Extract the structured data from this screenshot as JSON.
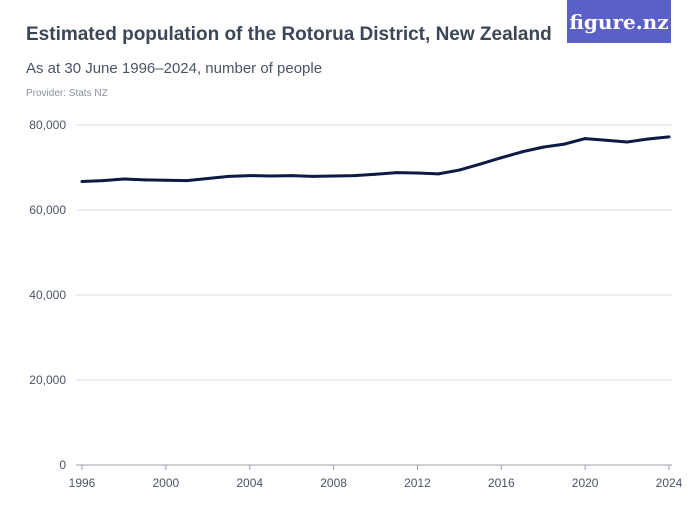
{
  "chart_data": {
    "type": "line",
    "title": "Estimated population of the Rotorua District, New Zealand",
    "subtitle": "As at 30 June 1996–2024, number of people",
    "provider": "Provider: Stats NZ",
    "xlabel": "",
    "ylabel": "",
    "xlim": [
      1996,
      2024
    ],
    "ylim": [
      0,
      80000
    ],
    "x_ticks": [
      "1996",
      "2000",
      "2004",
      "2008",
      "2012",
      "2016",
      "2020",
      "2024"
    ],
    "y_ticks": [
      "0",
      "20,000",
      "40,000",
      "60,000",
      "80,000"
    ],
    "grid": true,
    "line_color": "#0d1a45",
    "x": [
      1996,
      1997,
      1998,
      1999,
      2000,
      2001,
      2002,
      2003,
      2004,
      2005,
      2006,
      2007,
      2008,
      2009,
      2010,
      2011,
      2012,
      2013,
      2014,
      2015,
      2016,
      2017,
      2018,
      2019,
      2020,
      2021,
      2022,
      2023,
      2024
    ],
    "values": [
      66700,
      66900,
      67300,
      67100,
      67000,
      66900,
      67400,
      67900,
      68100,
      68000,
      68100,
      67900,
      68000,
      68100,
      68400,
      68800,
      68700,
      68500,
      69400,
      70800,
      72300,
      73700,
      74800,
      75500,
      76800,
      76400,
      76000,
      76700,
      77200
    ]
  },
  "logo": {
    "text": "figure.nz",
    "color": "#5a5fc9"
  }
}
